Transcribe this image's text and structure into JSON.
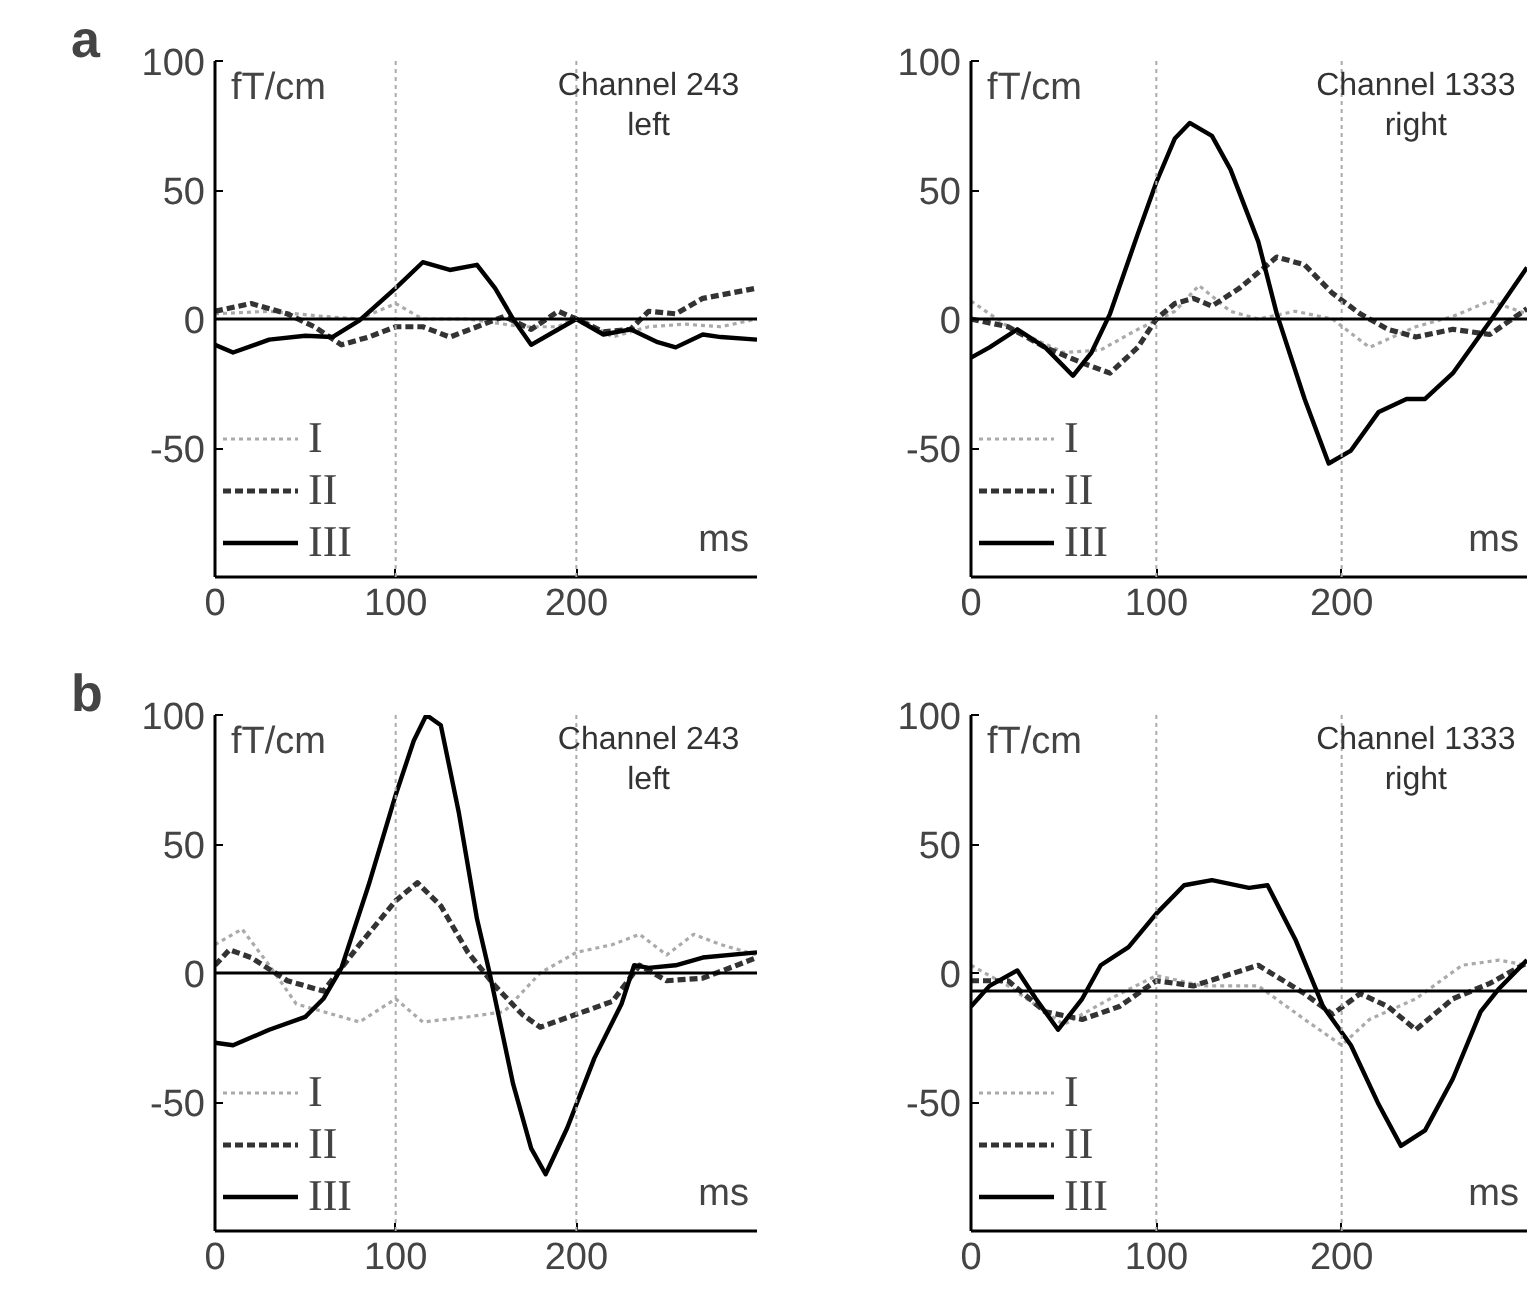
{
  "chart_data": [
    {
      "type": "line",
      "title": "a",
      "ylabel": "fT/cm",
      "xlabel": "ms",
      "annotations": [
        "Channel 243",
        "left"
      ],
      "xlim": [
        0,
        300
      ],
      "ylim": [
        -100,
        100
      ],
      "xticks": [
        0,
        100,
        200
      ],
      "yticks": [
        100,
        50,
        0,
        -50
      ],
      "legend": "bottom left",
      "grid": false,
      "ref_lines": [
        {
          "axis": "x",
          "value": 100,
          "color": "#aaaaaa",
          "line_style": "dotted"
        },
        {
          "axis": "x",
          "value": 200,
          "color": "#aaaaaa",
          "line_style": "dotted"
        },
        {
          "axis": "y",
          "value": 0,
          "color": "#000000",
          "line_style": "solid"
        }
      ],
      "series": [
        {
          "name": "I",
          "color": "#aaaaaa",
          "line_style": "dotted",
          "x": [
            0,
            30,
            60,
            80,
            100,
            115,
            140,
            170,
            190,
            200,
            220,
            240,
            260,
            280,
            300
          ],
          "values": [
            2,
            3,
            1,
            0,
            6,
            0,
            0,
            -3,
            -3,
            1,
            -7,
            -3,
            -2,
            -3,
            0
          ]
        },
        {
          "name": "II",
          "color": "#333333",
          "line_style": "dashed",
          "x": [
            0,
            20,
            40,
            55,
            70,
            85,
            100,
            115,
            130,
            145,
            160,
            175,
            190,
            200,
            215,
            230,
            240,
            255,
            270,
            300
          ],
          "values": [
            3,
            6,
            2,
            -3,
            -10,
            -7,
            -3,
            -3,
            -7,
            -3,
            1,
            -4,
            3,
            0,
            -5,
            -4,
            3,
            2,
            8,
            12
          ]
        },
        {
          "name": "III",
          "color": "#000000",
          "line_style": "solid",
          "x": [
            0,
            10,
            30,
            50,
            65,
            80,
            100,
            115,
            130,
            145,
            155,
            165,
            175,
            185,
            200,
            215,
            230,
            245,
            255,
            270,
            280,
            300
          ],
          "values": [
            -10,
            -13,
            -8,
            -6.5,
            -7,
            -0.5,
            12,
            22,
            19,
            21,
            12,
            0,
            -10,
            -6,
            0,
            -6,
            -4,
            -9,
            -11,
            -6,
            -7,
            -8
          ]
        }
      ]
    },
    {
      "type": "line",
      "ylabel": "fT/cm",
      "xlabel": "ms",
      "annotations": [
        "Channel 1333",
        "right"
      ],
      "xlim": [
        0,
        300
      ],
      "ylim": [
        -100,
        100
      ],
      "xticks": [
        0,
        100,
        200
      ],
      "yticks": [
        100,
        50,
        0,
        -50
      ],
      "legend": "bottom left",
      "grid": false,
      "ref_lines": [
        {
          "axis": "x",
          "value": 100,
          "color": "#aaaaaa",
          "line_style": "dotted"
        },
        {
          "axis": "x",
          "value": 200,
          "color": "#aaaaaa",
          "line_style": "dotted"
        },
        {
          "axis": "y",
          "value": 0,
          "color": "#000000",
          "line_style": "solid"
        }
      ],
      "series": [
        {
          "name": "I",
          "color": "#aaaaaa",
          "line_style": "dotted",
          "x": [
            0,
            20,
            50,
            70,
            90,
            110,
            123,
            140,
            155,
            175,
            195,
            215,
            240,
            260,
            280,
            300
          ],
          "values": [
            7,
            -3,
            -13,
            -12,
            -4,
            3,
            13,
            3,
            0,
            3,
            0,
            -11,
            -3,
            1,
            7,
            2
          ]
        },
        {
          "name": "II",
          "color": "#333333",
          "line_style": "dashed",
          "x": [
            0,
            20,
            40,
            60,
            75,
            90,
            100,
            110,
            120,
            130,
            145,
            165,
            180,
            195,
            210,
            225,
            240,
            260,
            280,
            300
          ],
          "values": [
            0,
            -3,
            -11,
            -17,
            -21,
            -11,
            0,
            6,
            8,
            5,
            12,
            24,
            21,
            10,
            2,
            -4,
            -7,
            -4,
            -6,
            4
          ]
        },
        {
          "name": "III",
          "color": "#000000",
          "line_style": "solid",
          "x": [
            0,
            10,
            25,
            40,
            55,
            65,
            75,
            90,
            100,
            110,
            118,
            130,
            140,
            155,
            165,
            180,
            193,
            205,
            220,
            235,
            245,
            260,
            280,
            300
          ],
          "values": [
            -15,
            -11,
            -4,
            -11,
            -22,
            -13,
            2,
            33,
            53,
            70,
            76,
            71,
            58,
            30,
            2,
            -31,
            -56,
            -51,
            -36,
            -31,
            -31,
            -21,
            -1,
            20
          ]
        }
      ]
    },
    {
      "type": "line",
      "title": "b",
      "ylabel": "fT/cm",
      "xlabel": "ms",
      "annotations": [
        "Channel 243",
        "left"
      ],
      "xlim": [
        0,
        300
      ],
      "ylim": [
        -100,
        100
      ],
      "xticks": [
        0,
        100,
        200
      ],
      "yticks": [
        100,
        50,
        0,
        -50
      ],
      "legend": "bottom left",
      "grid": false,
      "ref_lines": [
        {
          "axis": "x",
          "value": 100,
          "color": "#aaaaaa",
          "line_style": "dotted"
        },
        {
          "axis": "x",
          "value": 200,
          "color": "#aaaaaa",
          "line_style": "dotted"
        },
        {
          "axis": "y",
          "value": 0,
          "color": "#000000",
          "line_style": "solid"
        }
      ],
      "series": [
        {
          "name": "I",
          "color": "#aaaaaa",
          "line_style": "dotted",
          "x": [
            0,
            15,
            30,
            45,
            60,
            80,
            100,
            115,
            140,
            160,
            180,
            200,
            220,
            235,
            250,
            265,
            280,
            300
          ],
          "values": [
            11,
            17,
            3,
            -12,
            -15,
            -19,
            -10,
            -19,
            -17,
            -15,
            0,
            8,
            11,
            15,
            7,
            15,
            11,
            7
          ]
        },
        {
          "name": "II",
          "color": "#333333",
          "line_style": "dashed",
          "x": [
            0,
            8,
            20,
            40,
            60,
            80,
            100,
            112,
            125,
            140,
            155,
            170,
            180,
            200,
            220,
            235,
            250,
            270,
            300
          ],
          "values": [
            3,
            9,
            6,
            -3,
            -7,
            11,
            28,
            35,
            26,
            8,
            -5,
            -16,
            -21,
            -16,
            -11,
            3,
            -3,
            -2,
            6
          ]
        },
        {
          "name": "III",
          "color": "#000000",
          "line_style": "solid",
          "x": [
            0,
            10,
            30,
            50,
            60,
            70,
            85,
            100,
            110,
            117,
            125,
            135,
            145,
            152,
            165,
            175,
            183,
            195,
            210,
            225,
            232,
            240,
            255,
            270,
            300
          ],
          "values": [
            -27,
            -28,
            -22,
            -17,
            -10,
            2,
            34,
            69,
            90,
            100,
            96,
            62,
            21,
            0,
            -43,
            -68,
            -78,
            -60,
            -33,
            -12,
            3,
            2,
            3,
            6,
            8
          ]
        }
      ]
    },
    {
      "type": "line",
      "ylabel": "fT/cm",
      "xlabel": "ms",
      "annotations": [
        "Channel 1333",
        "right"
      ],
      "xlim": [
        0,
        300
      ],
      "ylim": [
        -100,
        100
      ],
      "xticks": [
        0,
        100,
        200
      ],
      "yticks": [
        100,
        50,
        0,
        -50
      ],
      "legend": "bottom left",
      "grid": false,
      "ref_lines": [
        {
          "axis": "x",
          "value": 100,
          "color": "#aaaaaa",
          "line_style": "dotted"
        },
        {
          "axis": "x",
          "value": 200,
          "color": "#aaaaaa",
          "line_style": "dotted"
        },
        {
          "axis": "y",
          "value": -7,
          "color": "#000000",
          "line_style": "solid"
        }
      ],
      "series": [
        {
          "name": "I",
          "color": "#aaaaaa",
          "line_style": "dotted",
          "x": [
            0,
            20,
            50,
            75,
            100,
            125,
            155,
            180,
            200,
            215,
            240,
            265,
            285,
            300
          ],
          "values": [
            3,
            -5,
            -20,
            -10,
            -1,
            -5,
            -5,
            -18,
            -28,
            -18,
            -10,
            3,
            5,
            3
          ]
        },
        {
          "name": "II",
          "color": "#333333",
          "line_style": "dashed",
          "x": [
            0,
            20,
            40,
            60,
            80,
            100,
            120,
            155,
            180,
            195,
            210,
            225,
            240,
            260,
            280,
            300
          ],
          "values": [
            -3,
            -3,
            -15,
            -18,
            -13,
            -3,
            -5,
            3,
            -8,
            -16,
            -8,
            -13,
            -22,
            -10,
            -4,
            4
          ]
        },
        {
          "name": "III",
          "color": "#000000",
          "line_style": "solid",
          "x": [
            0,
            10,
            25,
            35,
            47,
            60,
            70,
            85,
            100,
            115,
            130,
            150,
            160,
            175,
            190,
            205,
            220,
            232,
            245,
            260,
            275,
            285,
            300
          ],
          "values": [
            -13,
            -5,
            1,
            -10,
            -22,
            -10,
            3,
            10,
            23,
            34,
            36,
            33,
            34,
            13,
            -13,
            -28,
            -51,
            -67,
            -61,
            -41,
            -15,
            -6,
            5
          ]
        }
      ]
    }
  ]
}
